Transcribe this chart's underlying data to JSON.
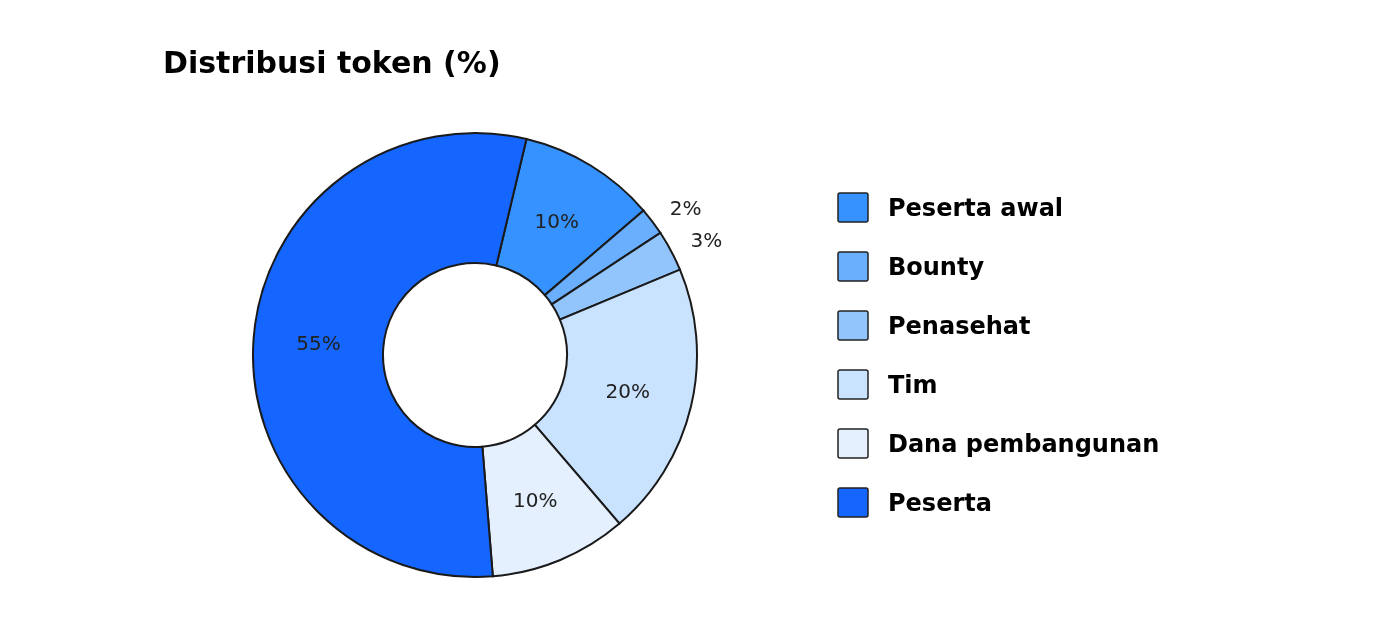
{
  "chart_data": {
    "type": "donut",
    "title": "Distribusi token (%)",
    "categories": [
      "Peserta awal",
      "Bounty",
      "Penasehat",
      "Tim",
      "Dana pembangunan",
      "Peserta"
    ],
    "values": [
      10,
      2,
      3,
      20,
      10,
      55
    ],
    "colors": [
      "#3592fe",
      "#6aaefe",
      "#93c5fd",
      "#c9e2fe",
      "#e4f0fe",
      "#1566fe"
    ],
    "value_labels": [
      "10%",
      "2%",
      "3%",
      "20%",
      "10%",
      "55%"
    ],
    "legend": "right"
  }
}
